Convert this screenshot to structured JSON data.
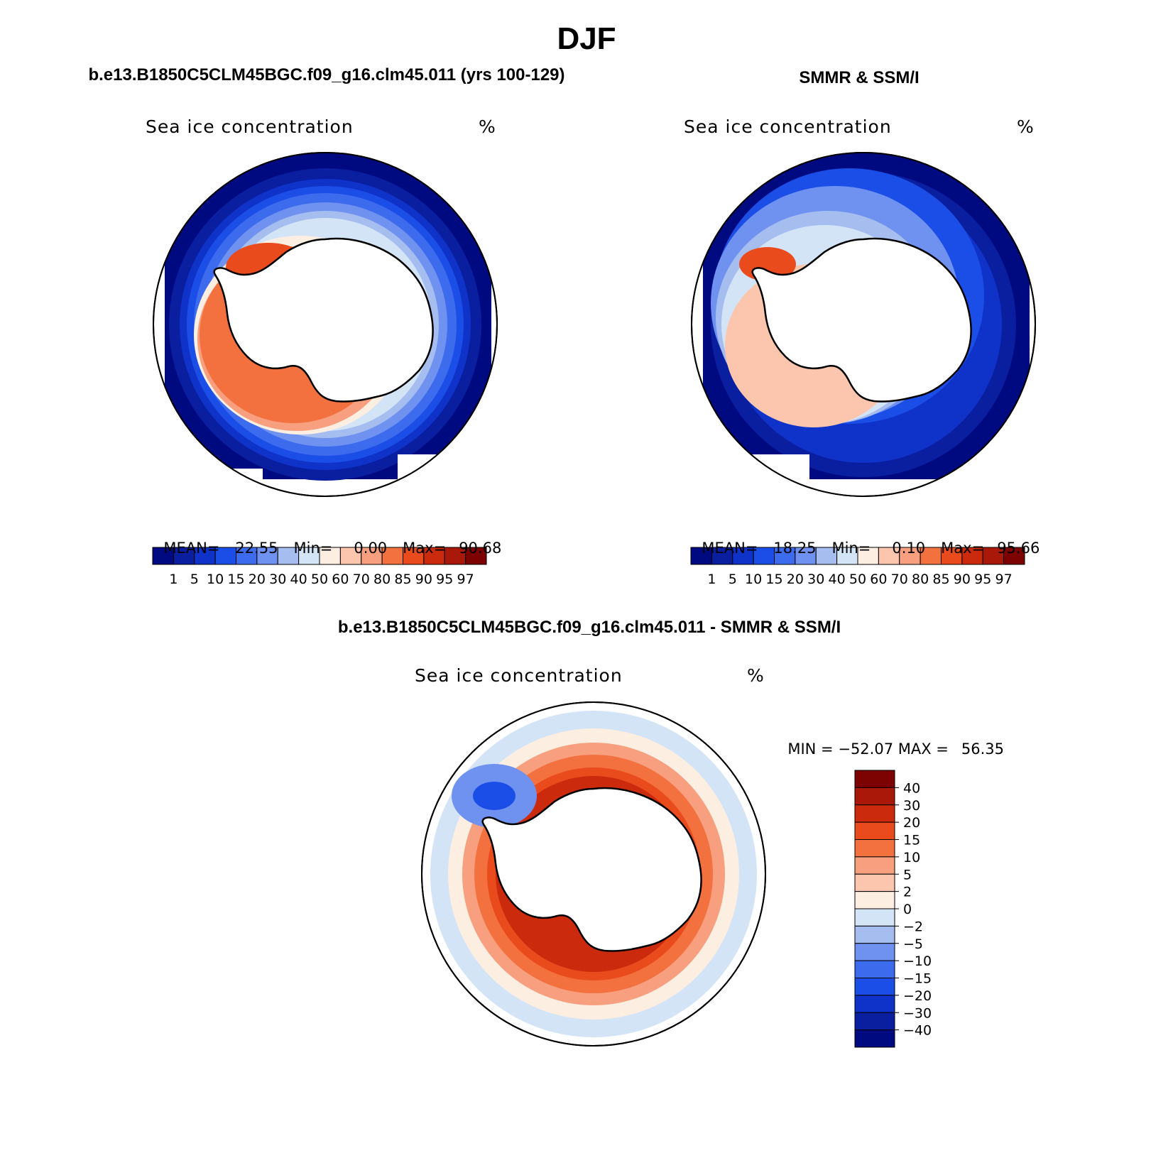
{
  "main_title": "DJF",
  "colors": {
    "abs_scale": [
      "#000a80",
      "#0a1ea0",
      "#0f32c8",
      "#1b4ee6",
      "#3d6bee",
      "#6f91f0",
      "#a6beef",
      "#d4e4f7",
      "#fdeee2",
      "#fbc6ad",
      "#f79f7e",
      "#f2713f",
      "#ea4b1d",
      "#cc2a0d",
      "#a91808",
      "#7d0303"
    ],
    "diff_scale": [
      "#000a80",
      "#0a1ea0",
      "#0f32c8",
      "#1b4ee6",
      "#3d6bee",
      "#6f91f0",
      "#a6beef",
      "#d4e4f7",
      "#fdeee2",
      "#fbc6ad",
      "#f79f7e",
      "#f2713f",
      "#ea4b1d",
      "#cc2a0d",
      "#a91808",
      "#7d0303"
    ]
  },
  "panels": {
    "model": {
      "header": "b.e13.B1850C5CLM45BGC.f09_g16.clm45.011 (yrs 100-129)",
      "subtitle": "Sea ice concentration",
      "units": "%",
      "stats": {
        "mean_label": "MEAN=",
        "mean": "22.55",
        "min_label": "Min=",
        "min": "0.00",
        "max_label": "Max=",
        "max": "90.68"
      },
      "colorbar_labels": [
        "1",
        "5",
        "10",
        "15",
        "20",
        "30",
        "40",
        "50",
        "60",
        "70",
        "80",
        "85",
        "90",
        "95",
        "97"
      ]
    },
    "obs": {
      "header": "SMMR & SSM/I",
      "subtitle": "Sea ice concentration",
      "units": "%",
      "stats": {
        "mean_label": "MEAN=",
        "mean": "18.25",
        "min_label": "Min=",
        "min": "0.10",
        "max_label": "Max=",
        "max": "95.66"
      },
      "colorbar_labels": [
        "1",
        "5",
        "10",
        "15",
        "20",
        "30",
        "40",
        "50",
        "60",
        "70",
        "80",
        "85",
        "90",
        "95",
        "97"
      ]
    },
    "diff": {
      "header": "b.e13.B1850C5CLM45BGC.f09_g16.clm45.011 - SMMR & SSM/I",
      "subtitle": "Sea ice concentration",
      "units": "%",
      "stats": {
        "min_label": "MIN =",
        "min": "−52.07",
        "max_label": "MAX =",
        "max": "56.35"
      },
      "colorbar_labels": [
        "40",
        "30",
        "20",
        "15",
        "10",
        "5",
        "2",
        "0",
        "−2",
        "−5",
        "−10",
        "−15",
        "−20",
        "−30",
        "−40"
      ]
    }
  }
}
